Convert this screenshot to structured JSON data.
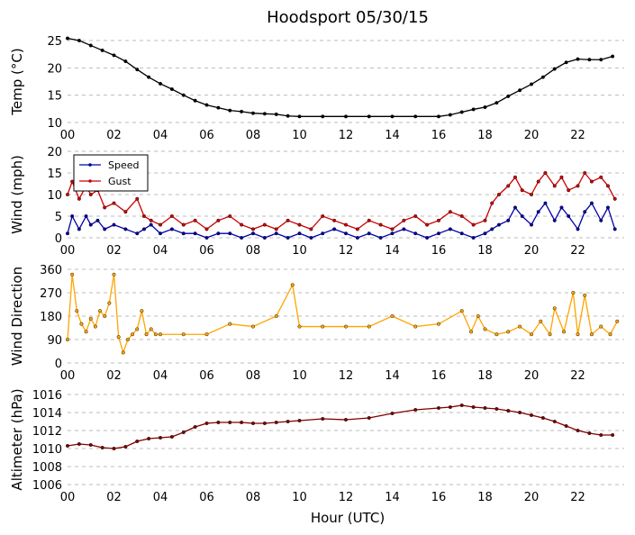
{
  "title": "Hoodsport 05/30/15",
  "xlabel": "Hour (UTC)",
  "x_tick_labels": [
    "00",
    "02",
    "04",
    "06",
    "08",
    "10",
    "12",
    "14",
    "16",
    "18",
    "20",
    "22"
  ],
  "chart_data": [
    {
      "type": "line",
      "ylabel": "Temp (°C)",
      "xlim": [
        0,
        24
      ],
      "ylim": [
        10,
        25
      ],
      "yticks": [
        10,
        15,
        20,
        25
      ],
      "grid": "horizontal dashed",
      "series": [
        {
          "color": "#000000",
          "x": [
            0,
            0.5,
            1,
            1.5,
            2,
            2.5,
            3,
            3.5,
            4,
            4.5,
            5,
            5.5,
            6,
            6.5,
            7,
            7.5,
            8,
            8.5,
            9,
            9.5,
            10,
            11,
            12,
            13,
            14,
            15,
            16,
            16.5,
            17,
            17.5,
            18,
            18.5,
            19,
            19.5,
            20,
            20.5,
            21,
            21.5,
            22,
            22.5,
            23,
            23.5
          ],
          "y": [
            25.4,
            25,
            24.1,
            23.2,
            22.3,
            21.2,
            19.7,
            18.3,
            17.1,
            16.1,
            15,
            14,
            13.2,
            12.7,
            12.2,
            12,
            11.7,
            11.6,
            11.5,
            11.2,
            11.1,
            11.1,
            11.1,
            11.1,
            11.1,
            11.1,
            11.1,
            11.4,
            11.9,
            12.4,
            12.8,
            13.6,
            14.8,
            15.9,
            17,
            18.3,
            19.8,
            21,
            21.6,
            21.5,
            21.5,
            22.1
          ]
        }
      ]
    },
    {
      "type": "line",
      "ylabel": "Wind (mph)",
      "xlim": [
        0,
        24
      ],
      "ylim": [
        0,
        20
      ],
      "yticks": [
        0,
        5,
        10,
        15,
        20
      ],
      "legend": "upper-left",
      "series": [
        {
          "name": "Speed",
          "color": "#0000aa",
          "x": [
            0,
            0.2,
            0.5,
            0.8,
            1,
            1.3,
            1.6,
            2,
            2.5,
            3,
            3.3,
            3.6,
            4,
            4.5,
            5,
            5.5,
            6,
            6.5,
            7,
            7.5,
            8,
            8.5,
            9,
            9.5,
            10,
            10.5,
            11,
            11.5,
            12,
            12.5,
            13,
            13.5,
            14,
            14.5,
            15,
            15.5,
            16,
            16.5,
            17,
            17.5,
            18,
            18.3,
            18.6,
            19,
            19.3,
            19.6,
            20,
            20.3,
            20.6,
            21,
            21.3,
            21.6,
            22,
            22.3,
            22.6,
            23,
            23.3,
            23.6
          ],
          "y": [
            1,
            5,
            2,
            5,
            3,
            4,
            2,
            3,
            2,
            1,
            2,
            3,
            1,
            2,
            1,
            1,
            0,
            1,
            1,
            0,
            1,
            0,
            1,
            0,
            1,
            0,
            1,
            2,
            1,
            0,
            1,
            0,
            1,
            2,
            1,
            0,
            1,
            2,
            1,
            0,
            1,
            2,
            3,
            4,
            7,
            5,
            3,
            6,
            8,
            4,
            7,
            5,
            2,
            6,
            8,
            4,
            7,
            2
          ]
        },
        {
          "name": "Gust",
          "color": "#cc0000",
          "x": [
            0,
            0.2,
            0.5,
            0.8,
            1,
            1.3,
            1.6,
            2,
            2.5,
            3,
            3.3,
            3.6,
            4,
            4.5,
            5,
            5.5,
            6,
            6.5,
            7,
            7.5,
            8,
            8.5,
            9,
            9.5,
            10,
            10.5,
            11,
            11.5,
            12,
            12.5,
            13,
            13.5,
            14,
            14.5,
            15,
            15.5,
            16,
            16.5,
            17,
            17.5,
            18,
            18.3,
            18.6,
            19,
            19.3,
            19.6,
            20,
            20.3,
            20.6,
            21,
            21.3,
            21.6,
            22,
            22.3,
            22.6,
            23,
            23.3,
            23.6
          ],
          "y": [
            10,
            13,
            9,
            12,
            10,
            11,
            7,
            8,
            6,
            9,
            5,
            4,
            3,
            5,
            3,
            4,
            2,
            4,
            5,
            3,
            2,
            3,
            2,
            4,
            3,
            2,
            5,
            4,
            3,
            2,
            4,
            3,
            2,
            4,
            5,
            3,
            4,
            6,
            5,
            3,
            4,
            8,
            10,
            12,
            14,
            11,
            10,
            13,
            15,
            12,
            14,
            11,
            12,
            15,
            13,
            14,
            12,
            9
          ]
        }
      ]
    },
    {
      "type": "line",
      "ylabel": "Wind Direction",
      "xlim": [
        0,
        24
      ],
      "ylim": [
        0,
        360
      ],
      "yticks": [
        0,
        90,
        180,
        270,
        360
      ],
      "series": [
        {
          "color": "#ffa500",
          "x": [
            0,
            0.2,
            0.4,
            0.6,
            0.8,
            1,
            1.2,
            1.4,
            1.6,
            1.8,
            2,
            2.2,
            2.4,
            2.6,
            2.8,
            3,
            3.2,
            3.4,
            3.6,
            3.8,
            4,
            5,
            6,
            7,
            8,
            9,
            9.7,
            10,
            11,
            12,
            13,
            14,
            15,
            16,
            17,
            17.4,
            17.7,
            18,
            18.5,
            19,
            19.5,
            20,
            20.4,
            20.8,
            21,
            21.4,
            21.8,
            22,
            22.3,
            22.6,
            23,
            23.4,
            23.7
          ],
          "y": [
            90,
            340,
            200,
            150,
            120,
            170,
            140,
            200,
            180,
            230,
            340,
            100,
            40,
            90,
            110,
            130,
            200,
            110,
            130,
            110,
            110,
            110,
            110,
            150,
            140,
            180,
            300,
            140,
            140,
            140,
            140,
            180,
            140,
            150,
            200,
            120,
            180,
            130,
            110,
            120,
            140,
            110,
            160,
            110,
            210,
            120,
            270,
            110,
            260,
            110,
            140,
            110,
            160
          ]
        }
      ]
    },
    {
      "type": "line",
      "ylabel": "Altimeter (hPa)",
      "xlim": [
        0,
        24
      ],
      "ylim": [
        1006,
        1016
      ],
      "yticks": [
        1006,
        1008,
        1010,
        1012,
        1014,
        1016
      ],
      "series": [
        {
          "color": "#7f0000",
          "x": [
            0,
            0.5,
            1,
            1.5,
            2,
            2.5,
            3,
            3.5,
            4,
            4.5,
            5,
            5.5,
            6,
            6.5,
            7,
            7.5,
            8,
            8.5,
            9,
            9.5,
            10,
            11,
            12,
            13,
            14,
            15,
            16,
            16.5,
            17,
            17.5,
            18,
            18.5,
            19,
            19.5,
            20,
            20.5,
            21,
            21.5,
            22,
            22.5,
            23,
            23.5
          ],
          "y": [
            1010.3,
            1010.5,
            1010.4,
            1010.1,
            1010,
            1010.2,
            1010.8,
            1011.1,
            1011.2,
            1011.3,
            1011.8,
            1012.4,
            1012.8,
            1012.9,
            1012.9,
            1012.9,
            1012.8,
            1012.8,
            1012.9,
            1013,
            1013.1,
            1013.3,
            1013.2,
            1013.4,
            1013.9,
            1014.3,
            1014.5,
            1014.6,
            1014.8,
            1014.6,
            1014.5,
            1014.4,
            1014.2,
            1014,
            1013.7,
            1013.4,
            1013,
            1012.5,
            1012,
            1011.7,
            1011.5,
            1011.5
          ]
        }
      ]
    }
  ]
}
